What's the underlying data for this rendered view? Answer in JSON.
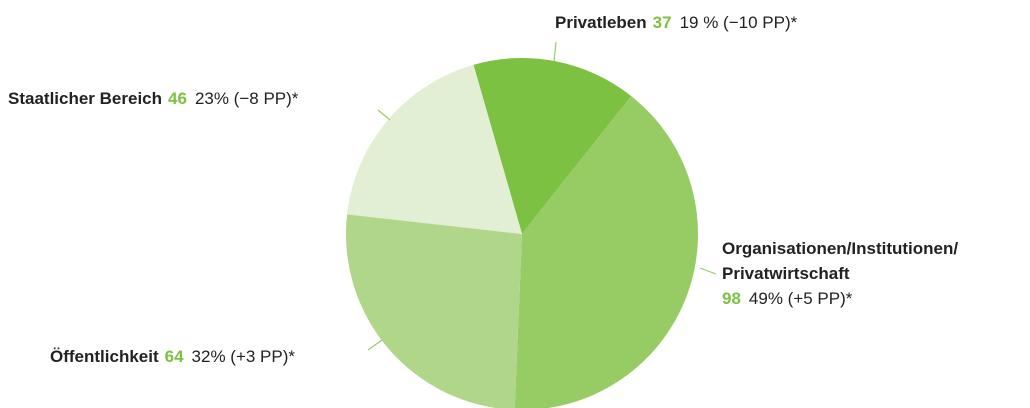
{
  "chart_data": {
    "type": "pie",
    "categories": [
      "Privatleben",
      "Organisationen/Institutionen/\nPrivatwirtschaft",
      "Öffentlichkeit",
      "Staatlicher Bereich"
    ],
    "values": [
      37,
      98,
      64,
      46
    ],
    "shares": [
      "19 % (−10 PP)*",
      "49% (+5 PP)*",
      "32% (+3 PP)*",
      "23% (−8 PP)*"
    ],
    "colors": [
      "#7dc142",
      "#97cc64",
      "#b0d68a",
      "#e2efd4"
    ],
    "value_color": "#7dc142"
  }
}
